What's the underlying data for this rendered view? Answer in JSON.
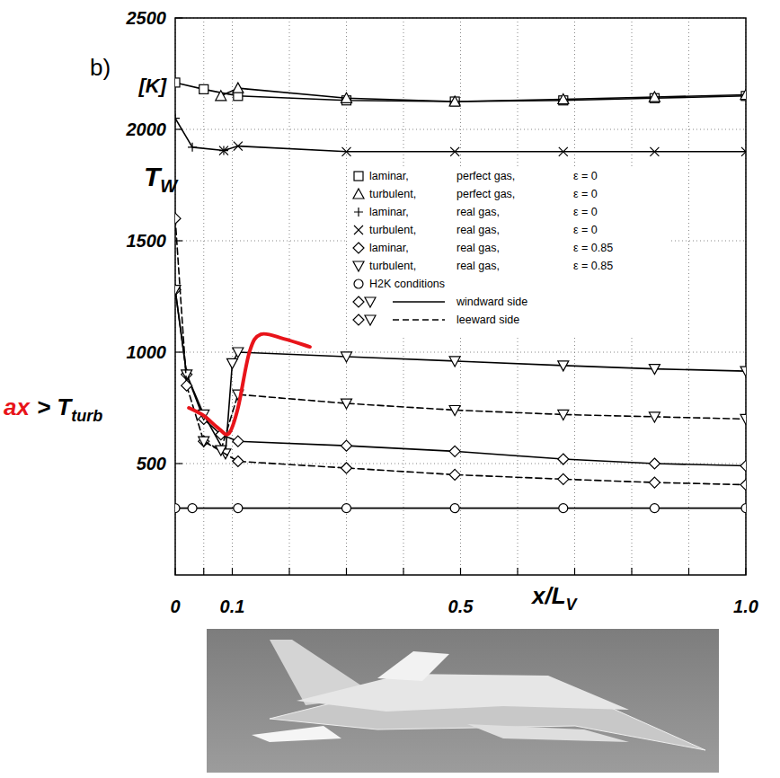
{
  "chart_data": {
    "type": "line",
    "panel_label": "b)",
    "ylabel": "T",
    "ylabel_subscript": "W",
    "yunit": "[K]",
    "xlabel": "x/L",
    "xlabel_subscript": "V",
    "xlim": [
      0,
      1
    ],
    "ylim": [
      0,
      2500
    ],
    "xticks": [
      0,
      {
        "value": 0.05,
        "label": null
      },
      0.1,
      {
        "value": 0.2,
        "label": null
      },
      {
        "value": 0.3,
        "label": null
      },
      {
        "value": 0.4,
        "label": null
      },
      0.5,
      {
        "value": 0.6,
        "label": null
      },
      {
        "value": 0.7,
        "label": null
      },
      {
        "value": 0.8,
        "label": null
      },
      {
        "value": 0.9,
        "label": null
      },
      {
        "value": 1,
        "label": "1.0"
      }
    ],
    "yticks": [
      500,
      1000,
      1500,
      2000,
      2500
    ],
    "grid": true,
    "legend": "center",
    "series": [
      {
        "name": "laminar, perfect gas, ε = 0",
        "color": "#000000",
        "marker": "square",
        "line_style": "solid",
        "x": [
          0,
          0.05,
          0.11,
          0.3,
          0.49,
          0.68,
          0.84,
          1
        ],
        "values": [
          2210,
          2180,
          2150,
          2130,
          2125,
          2130,
          2140,
          2150
        ]
      },
      {
        "name": "turbulent, perfect gas, ε = 0",
        "color": "#000000",
        "marker": "triangle",
        "line_style": "solid",
        "x": [
          0.08,
          0.11,
          0.3,
          0.49,
          0.68,
          0.84,
          1
        ],
        "values": [
          2150,
          2185,
          2140,
          2125,
          2135,
          2145,
          2155
        ]
      },
      {
        "name": "laminar, real gas, ε = 0",
        "color": "#000000",
        "marker": "plus",
        "line_style": "solid",
        "x": [
          0,
          0.03,
          0.085
        ],
        "values": [
          2050,
          1920,
          1905
        ]
      },
      {
        "name": "turbulent, real gas, ε = 0",
        "color": "#000000",
        "marker": "x",
        "line_style": "solid",
        "x": [
          0.085,
          0.11,
          0.3,
          0.49,
          0.68,
          0.84,
          1
        ],
        "values": [
          1905,
          1925,
          1900,
          1900,
          1900,
          1900,
          1900
        ]
      },
      {
        "name": "laminar, real gas, ε = 0.85",
        "color": "#000000",
        "marker": "diamond",
        "line_style": "solid",
        "x": [
          0,
          0.02,
          0.05,
          0.08,
          0.11,
          0.3,
          0.49,
          0.68,
          0.84,
          1
        ],
        "values": [
          1280,
          900,
          700,
          630,
          600,
          580,
          555,
          520,
          500,
          490
        ]
      },
      {
        "name": "turbulent, real gas, ε = 0.85",
        "color": "#000000",
        "marker": "triangle-down",
        "line_style": "solid",
        "x": [
          0,
          0.02,
          0.05,
          0.088,
          0.1,
          0.11,
          0.3,
          0.49,
          0.68,
          0.84,
          1
        ],
        "values": [
          1280,
          900,
          720,
          545,
          950,
          1000,
          980,
          960,
          940,
          925,
          915
        ]
      },
      {
        "name": "H2K conditions",
        "color": "#000000",
        "marker": "circle",
        "line_style": "solid",
        "x": [
          0,
          0.03,
          0.11,
          0.3,
          0.49,
          0.68,
          0.84,
          1
        ],
        "values": [
          300,
          300,
          300,
          300,
          300,
          300,
          300,
          300
        ]
      },
      {
        "color": "#000000",
        "marker": "diamond",
        "line_style": "dashed",
        "x": [
          0,
          0.02,
          0.05,
          0.11,
          0.3,
          0.49,
          0.68,
          0.84,
          1
        ],
        "values": [
          1600,
          850,
          600,
          510,
          480,
          450,
          430,
          415,
          405
        ]
      },
      {
        "color": "#000000",
        "marker": "triangle-down",
        "line_style": "dashed",
        "x": [
          0.05,
          0.08,
          0.11,
          0.3,
          0.49,
          0.68,
          0.84,
          1
        ],
        "values": [
          600,
          560,
          810,
          770,
          740,
          720,
          710,
          700
        ]
      },
      {
        "color": "#e8141a",
        "marker": "none",
        "line_style": "thick",
        "x": [
          0.024,
          0.05,
          0.075,
          0.094,
          0.11,
          0.13,
          0.15,
          0.19,
          0.236
        ],
        "values": [
          750,
          715,
          660,
          635,
          750,
          1000,
          1080,
          1060,
          1024
        ]
      }
    ],
    "legend_line_styles": [
      {
        "markers": [
          "diamond",
          "triangle-down"
        ],
        "line_style": "solid",
        "label": "windward side"
      },
      {
        "markers": [
          "diamond",
          "triangle-down"
        ],
        "line_style": "dashed",
        "label": "leeward side"
      }
    ],
    "annotation": [
      {
        "text": "ax",
        "color": "#e8141a"
      },
      {
        "text": "> T",
        "color": "#000000"
      },
      {
        "text": "turb",
        "color": "#000000",
        "subscript": true
      }
    ]
  }
}
